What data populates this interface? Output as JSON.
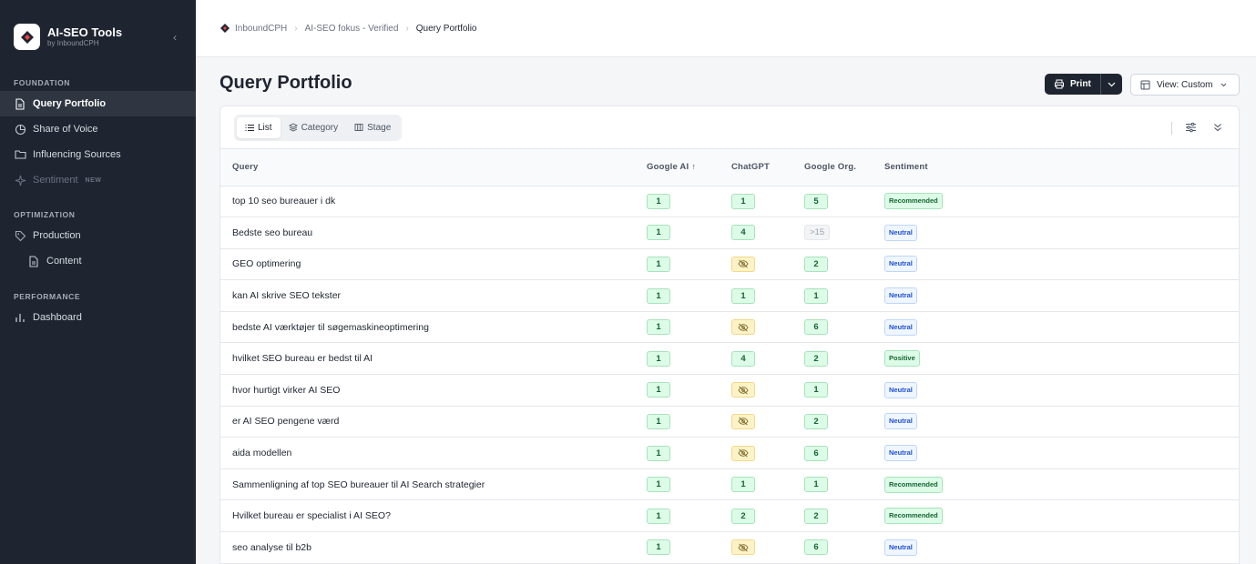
{
  "brand": {
    "title": "AI-SEO Tools",
    "subtitle": "by InboundCPH"
  },
  "sidebar": {
    "sections": [
      {
        "label": "FOUNDATION",
        "items": [
          {
            "label": "Query Portfolio",
            "icon": "document-icon",
            "active": true
          },
          {
            "label": "Share of Voice",
            "icon": "pie-chart-icon"
          },
          {
            "label": "Influencing Sources",
            "icon": "folder-icon"
          },
          {
            "label": "Sentiment",
            "icon": "sparkle-icon",
            "disabled": true,
            "badge": "NEW"
          }
        ]
      },
      {
        "label": "OPTIMIZATION",
        "items": [
          {
            "label": "Production",
            "icon": "tag-icon"
          },
          {
            "label": "Content",
            "icon": "document-icon",
            "sub": true
          }
        ]
      },
      {
        "label": "PERFORMANCE",
        "items": [
          {
            "label": "Dashboard",
            "icon": "bar-chart-icon"
          }
        ]
      }
    ]
  },
  "breadcrumb": [
    "InboundCPH",
    "AI-SEO fokus - Verified",
    "Query Portfolio"
  ],
  "page": {
    "title": "Query Portfolio",
    "print_label": "Print",
    "view_label": "View: Custom"
  },
  "tabs": [
    {
      "label": "List",
      "active": true
    },
    {
      "label": "Category"
    },
    {
      "label": "Stage"
    }
  ],
  "table": {
    "columns": [
      "Query",
      "Google AI",
      "ChatGPT",
      "Google Org.",
      "Sentiment"
    ],
    "sort_indicator": "↑",
    "rows": [
      {
        "query": "top 10 seo bureauer i dk",
        "google_ai": "1",
        "chatgpt": "1",
        "google_org": "5",
        "sentiment": "Recommended"
      },
      {
        "query": "Bedste seo bureau",
        "google_ai": "1",
        "chatgpt": "4",
        "google_org": ">15",
        "sentiment": "Neutral"
      },
      {
        "query": "GEO optimering",
        "google_ai": "1",
        "chatgpt": "",
        "google_org": "2",
        "sentiment": "Neutral"
      },
      {
        "query": "kan AI skrive SEO tekster",
        "google_ai": "1",
        "chatgpt": "1",
        "google_org": "1",
        "sentiment": "Neutral"
      },
      {
        "query": "bedste AI værktøjer til søgemaskineoptimering",
        "google_ai": "1",
        "chatgpt": "",
        "google_org": "6",
        "sentiment": "Neutral"
      },
      {
        "query": "hvilket SEO bureau er bedst til AI",
        "google_ai": "1",
        "chatgpt": "4",
        "google_org": "2",
        "sentiment": "Positive"
      },
      {
        "query": "hvor hurtigt virker AI SEO",
        "google_ai": "1",
        "chatgpt": "",
        "google_org": "1",
        "sentiment": "Neutral"
      },
      {
        "query": "er AI SEO pengene værd",
        "google_ai": "1",
        "chatgpt": "",
        "google_org": "2",
        "sentiment": "Neutral"
      },
      {
        "query": "aida modellen",
        "google_ai": "1",
        "chatgpt": "",
        "google_org": "6",
        "sentiment": "Neutral"
      },
      {
        "query": "Sammenligning af top SEO bureauer til AI Search strategier",
        "google_ai": "1",
        "chatgpt": "1",
        "google_org": "1",
        "sentiment": "Recommended"
      },
      {
        "query": "Hvilket bureau er specialist i AI SEO?",
        "google_ai": "1",
        "chatgpt": "2",
        "google_org": "2",
        "sentiment": "Recommended"
      },
      {
        "query": "seo analyse til b2b",
        "google_ai": "1",
        "chatgpt": "",
        "google_org": "6",
        "sentiment": "Neutral"
      }
    ]
  }
}
